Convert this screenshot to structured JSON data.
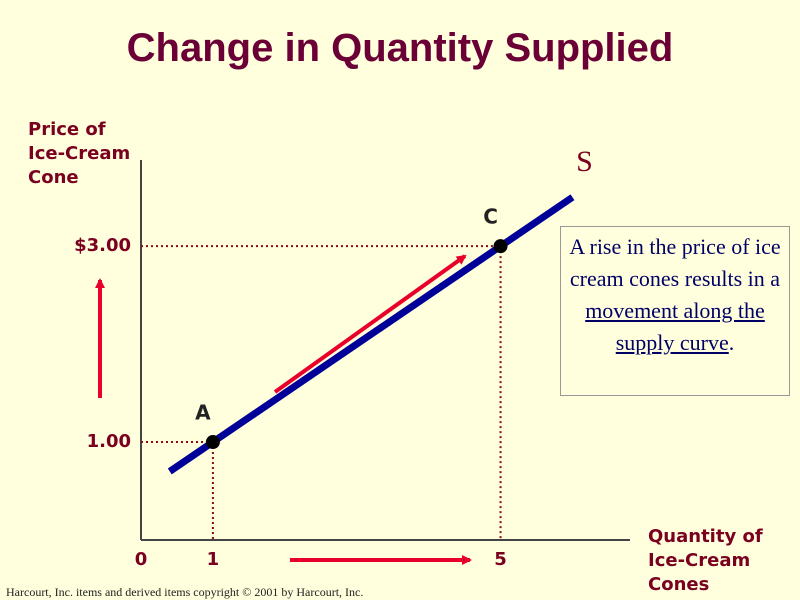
{
  "title": "Change in Quantity Supplied",
  "chart_data": {
    "type": "line",
    "ylabel": "Price of\nIce-Cream\nCone",
    "xlabel": "Quantity of\nIce-Cream\nCones",
    "xlim": [
      0,
      6.8
    ],
    "ylim": [
      0,
      3.88
    ],
    "xticks": [
      0,
      1,
      5
    ],
    "yticks": [
      {
        "value": 3,
        "label": "$3.00"
      },
      {
        "value": 1,
        "label": "1.00"
      }
    ],
    "series": [
      {
        "name": "S",
        "color": "#000099",
        "x": [
          0.4,
          6
        ],
        "values": [
          0.7,
          3.5
        ]
      },
      {
        "color": "#000000",
        "x": [
          1,
          5
        ],
        "values": [
          1,
          3
        ],
        "point_labels": [
          "A",
          "C"
        ]
      }
    ]
  },
  "annotation": {
    "text": "A rise in the price of ice cream cones results in a",
    "underlined": "movement along the supply curve",
    "end": "."
  },
  "footer": "Harcourt, Inc. items and derived items copyright © 2001  by Harcourt, Inc."
}
